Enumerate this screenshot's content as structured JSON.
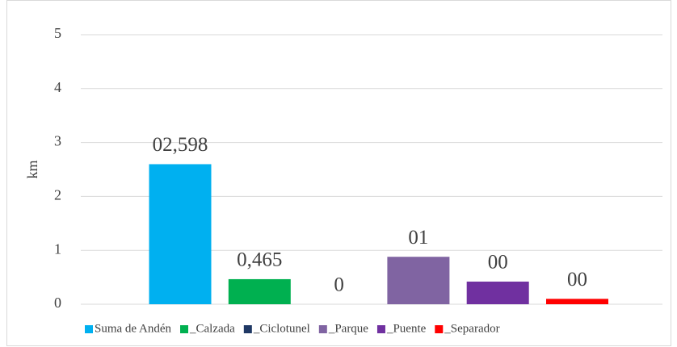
{
  "chart_data": {
    "type": "bar",
    "y_label": "km",
    "ylim": [
      0,
      5
    ],
    "yticks": [
      0,
      1,
      2,
      3,
      4,
      5
    ],
    "grid": true,
    "series": [
      {
        "name": "Suma de Andén",
        "color": "#00b0f0",
        "values": [
          2.598
        ],
        "value_labels": [
          "02,598"
        ]
      },
      {
        "name": "_Calzada",
        "color": "#00b050",
        "values": [
          0.465
        ],
        "value_labels": [
          "0,465"
        ]
      },
      {
        "name": "_Ciclotunel",
        "color": "#1f3864",
        "values": [
          0
        ],
        "value_labels": [
          "0"
        ]
      },
      {
        "name": "_Parque",
        "color": "#8064a2",
        "values": [
          0.88
        ],
        "value_labels": [
          "01"
        ]
      },
      {
        "name": "_Puente",
        "color": "#7030a0",
        "values": [
          0.42
        ],
        "value_labels": [
          "00"
        ]
      },
      {
        "name": "_Separador",
        "color": "#ff0000",
        "values": [
          0.1
        ],
        "value_labels": [
          "00"
        ]
      }
    ],
    "legend": "bottom"
  }
}
